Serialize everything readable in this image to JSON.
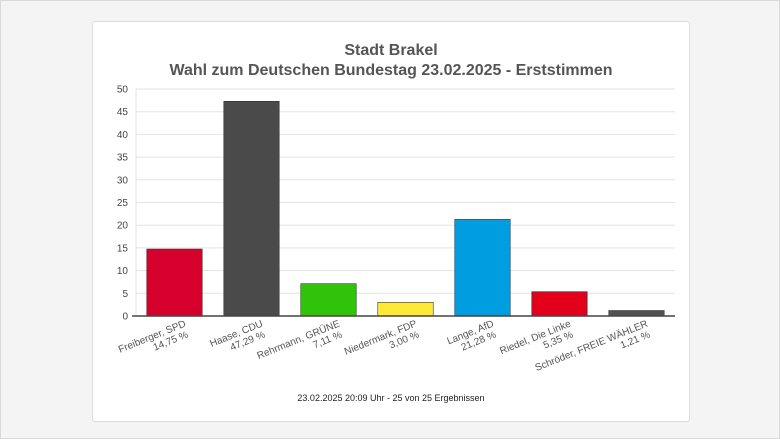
{
  "chart_data": {
    "type": "bar",
    "title": "Stadt Brakel",
    "subtitle": "Wahl zum Deutschen Bundestag 23.02.2025  - Erststimmen",
    "categories": [
      [
        "Freiberger, SPD",
        "14,75 %"
      ],
      [
        "Haase, CDU",
        "47,29 %"
      ],
      [
        "Rehrmann, GRÜNE",
        "7,11 %"
      ],
      [
        "Niedermark, FDP",
        "3,00 %"
      ],
      [
        "Lange, AfD",
        "21,28 %"
      ],
      [
        "Riedel, Die Linke",
        "5,35 %"
      ],
      [
        "Schröder, FREIE WÄHLER",
        "1,21 %"
      ]
    ],
    "values": [
      14.75,
      47.29,
      7.11,
      3.0,
      21.28,
      5.35,
      1.21
    ],
    "colors": [
      "#d6002d",
      "#4a4a4a",
      "#2fc40a",
      "#ffe936",
      "#009ee0",
      "#e2001a",
      "#525252"
    ],
    "ylim": [
      0,
      50
    ],
    "yticks": [
      "0",
      "5",
      "10",
      "15",
      "20",
      "25",
      "30",
      "35",
      "40",
      "45",
      "50"
    ],
    "grid": true,
    "xlabel": "",
    "ylabel": ""
  },
  "footer": "23.02.2025 20:09 Uhr - 25 von 25 Ergebnissen"
}
